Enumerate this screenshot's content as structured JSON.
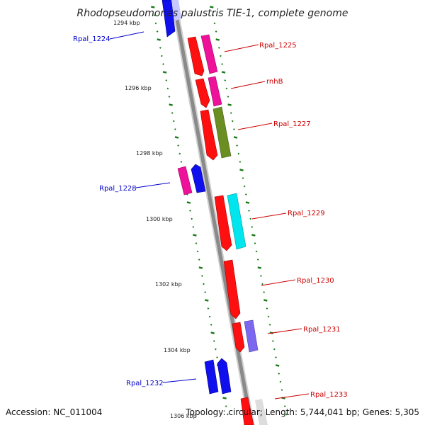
{
  "title": "Rhodopseudomonas palustris TIE-1, complete genome",
  "footer": {
    "accession": "Accession: NC_011004",
    "topology": "Topology: circular; Length: 5,744,041 bp; Genes: 5,305"
  },
  "colors": {
    "backbone": "#8a8a8a",
    "forward_label": "#cc0000",
    "reverse_label": "#0000cc",
    "tick": "#1a7a1a",
    "red": "#ff0000",
    "magenta": "#ee1199",
    "olive": "#6b8e23",
    "cyan": "#00e5ee",
    "purple": "#7b68ee",
    "blue": "#0000ee"
  },
  "kbp_labels": [
    "1294 kbp",
    "1296 kbp",
    "1298 kbp",
    "1300 kbp",
    "1302 kbp",
    "1304 kbp",
    "1306 kbp"
  ],
  "genes": [
    {
      "label": "Rpal_1224",
      "strand": "reverse"
    },
    {
      "label": "Rpal_1225",
      "strand": "forward"
    },
    {
      "label": "rnhB",
      "strand": "forward"
    },
    {
      "label": "Rpal_1227",
      "strand": "forward"
    },
    {
      "label": "Rpal_1228",
      "strand": "reverse"
    },
    {
      "label": "Rpal_1229",
      "strand": "forward"
    },
    {
      "label": "Rpal_1230",
      "strand": "forward"
    },
    {
      "label": "Rpal_1231",
      "strand": "forward"
    },
    {
      "label": "Rpal_1232",
      "strand": "reverse"
    },
    {
      "label": "Rpal_1233",
      "strand": "forward"
    }
  ]
}
